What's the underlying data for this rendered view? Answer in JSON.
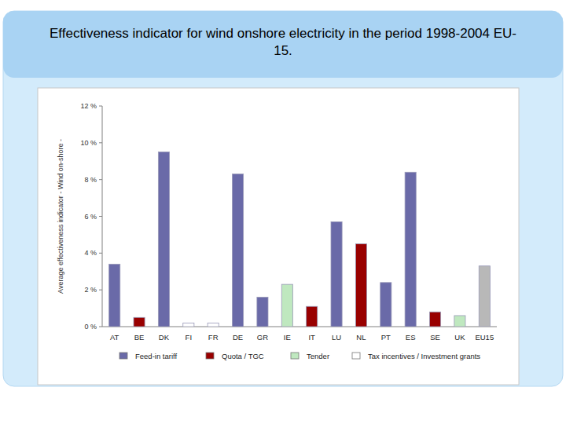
{
  "chart_data": {
    "type": "bar",
    "title": "Effectiveness indicator for wind onshore electricity in the period 1998-2004 EU-15.",
    "y_label": "Average effectiveness indicator - Wind on-shore -",
    "categories": [
      "AT",
      "BE",
      "DK",
      "FI",
      "FR",
      "DE",
      "GR",
      "IE",
      "IT",
      "LU",
      "NL",
      "PT",
      "ES",
      "SE",
      "UK",
      "EU15"
    ],
    "series": [
      {
        "name": "Feed-in tariff",
        "color": "#6a6aa8",
        "values": [
          3.4,
          null,
          9.5,
          null,
          null,
          8.3,
          1.6,
          null,
          null,
          5.7,
          null,
          2.4,
          8.4,
          null,
          null,
          null
        ]
      },
      {
        "name": "Quota / TGC",
        "color": "#990000",
        "values": [
          null,
          0.5,
          null,
          null,
          null,
          null,
          null,
          null,
          1.1,
          null,
          4.5,
          null,
          null,
          0.8,
          null,
          null
        ]
      },
      {
        "name": "Tender",
        "color": "#bfe8bf",
        "values": [
          null,
          null,
          null,
          null,
          null,
          null,
          null,
          2.3,
          null,
          null,
          null,
          null,
          null,
          null,
          0.6,
          null
        ]
      },
      {
        "name": "Tax incentives / Investment grants",
        "color": "#ffffff",
        "values": [
          null,
          null,
          null,
          0.2,
          0.2,
          null,
          null,
          null,
          null,
          null,
          null,
          null,
          null,
          null,
          null,
          null
        ]
      },
      {
        "color": "#b8b8b8",
        "values": [
          null,
          null,
          null,
          null,
          null,
          null,
          null,
          null,
          null,
          null,
          null,
          null,
          null,
          null,
          null,
          3.3
        ]
      }
    ],
    "ylim": [
      0,
      12
    ],
    "yticks": [
      {
        "value": 0,
        "label": "0 %"
      },
      {
        "value": 2,
        "label": "2 %"
      },
      {
        "value": 4,
        "label": "4 %"
      },
      {
        "value": 6,
        "label": "6 %"
      },
      {
        "value": 8,
        "label": "8 %"
      },
      {
        "value": 10,
        "label": "10 %"
      },
      {
        "value": 12,
        "label": "12 %"
      }
    ],
    "grid": false,
    "legend": "bottom"
  }
}
